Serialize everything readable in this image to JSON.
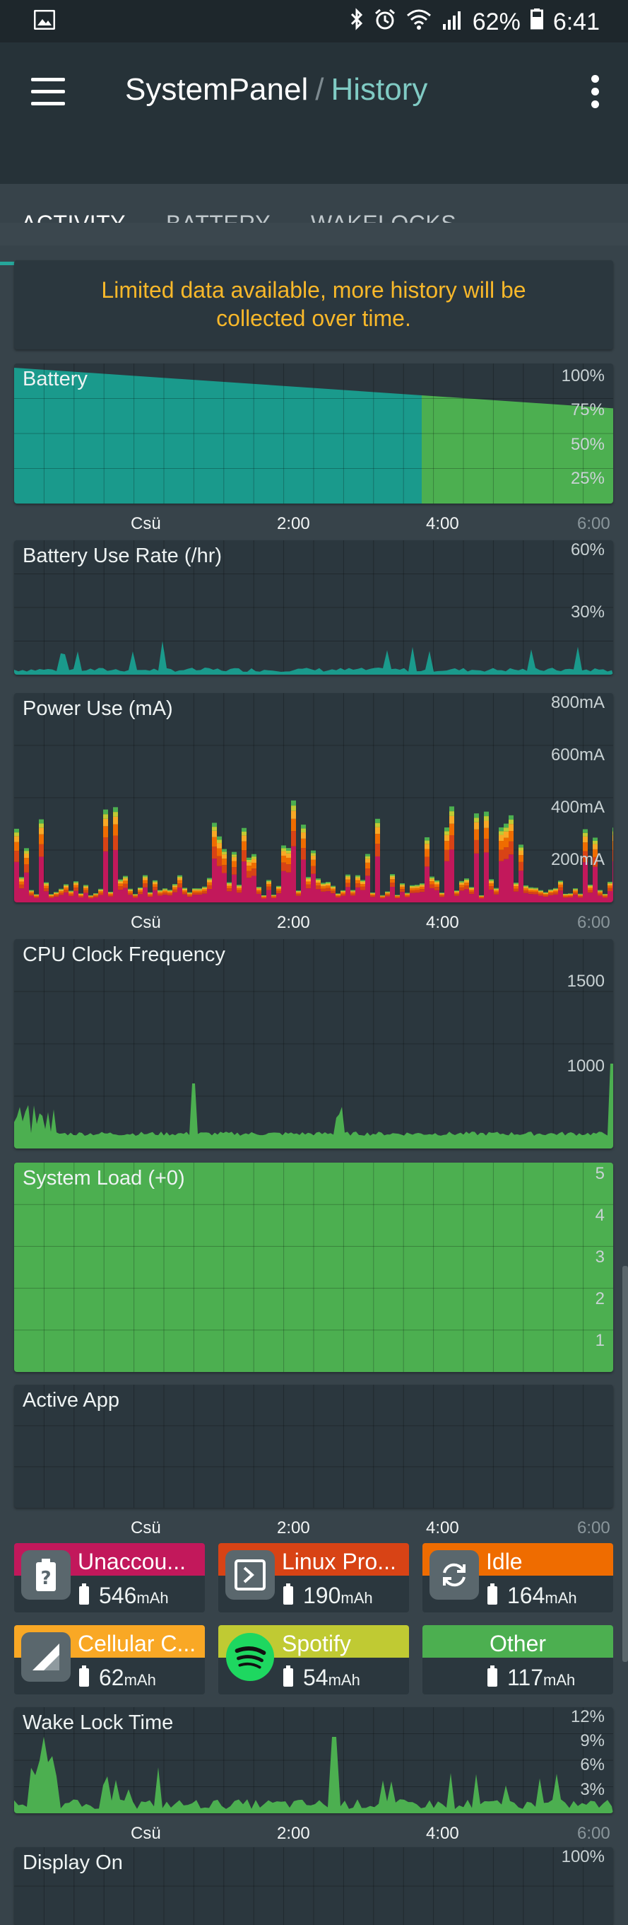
{
  "status_bar": {
    "battery": "62%",
    "time": "6:41"
  },
  "app_bar": {
    "app_name": "SystemPanel",
    "separator": "/",
    "section": "History"
  },
  "tabs": [
    {
      "label": "ACTIVITY",
      "active": true
    },
    {
      "label": "BATTERY",
      "active": false
    },
    {
      "label": "WAKELOCKS",
      "active": false
    }
  ],
  "notice": {
    "line1": "Limited data available, more history will be",
    "line2": "collected over time."
  },
  "x_axis": {
    "labels": [
      "Csü",
      "2:00",
      "4:00",
      "6:00"
    ]
  },
  "charts": {
    "battery": {
      "title": "Battery",
      "y_labels": [
        "100%",
        "75%",
        "50%",
        "25%"
      ],
      "fill_color": "#1a9a8c",
      "charging_color": "#4caf50",
      "level_start": 97,
      "level_end": 68,
      "charge_from_fraction": 0.68
    },
    "battery_use_rate": {
      "title": "Battery Use Rate (/hr)",
      "y_labels": [
        "60%",
        "30%"
      ],
      "color": "#1a9a8c"
    },
    "power_use": {
      "title": "Power Use (mA)",
      "y_labels": [
        "800mA",
        "600mA",
        "400mA",
        "200mA"
      ]
    },
    "cpu": {
      "title": "CPU Clock Frequency",
      "y_labels": [
        "1500",
        "1000"
      ],
      "color": "#4caf50"
    },
    "system_load": {
      "title": "System Load (+0)",
      "y_labels": [
        "5",
        "4",
        "3",
        "2",
        "1"
      ],
      "color": "#4caf50"
    },
    "active_app": {
      "title": "Active App"
    },
    "wake_lock": {
      "title": "Wake Lock Time",
      "y_labels": [
        "12%",
        "9%",
        "6%",
        "3%"
      ],
      "color": "#4caf50"
    },
    "display_on": {
      "title": "Display On",
      "y_labels": [
        "100%"
      ]
    }
  },
  "usage_tiles": [
    {
      "name": "Unaccou...",
      "value": "546",
      "unit": "mAh",
      "color": "#c2185b",
      "icon": "battery-question-icon"
    },
    {
      "name": "Linux Pro...",
      "value": "190",
      "unit": "mAh",
      "color": "#d84315",
      "icon": "terminal-icon"
    },
    {
      "name": "Idle",
      "value": "164",
      "unit": "mAh",
      "color": "#ef6c00",
      "icon": "sync-icon"
    },
    {
      "name": "Cellular C...",
      "value": "62",
      "unit": "mAh",
      "color": "#f9a825",
      "icon": "signal-icon"
    },
    {
      "name": "Spotify",
      "value": "54",
      "unit": "mAh",
      "color": "#c0ca33",
      "icon": "spotify-icon"
    },
    {
      "name": "Other",
      "value": "117",
      "unit": "mAh",
      "color": "#4caf50",
      "icon": ""
    }
  ]
}
